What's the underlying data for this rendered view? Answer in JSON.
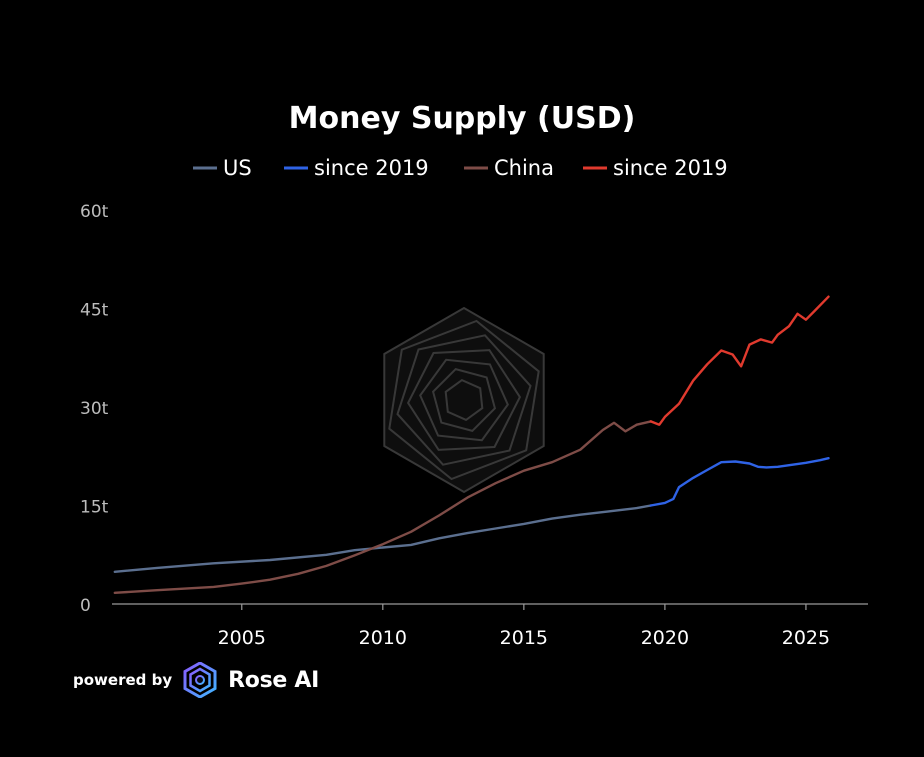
{
  "chart_data": {
    "type": "line",
    "title": "Money Supply (USD)",
    "xlabel": "",
    "ylabel": "",
    "xlim": [
      2000.4,
      2027.2
    ],
    "ylim": [
      0,
      60
    ],
    "x_ticks": [
      2005,
      2010,
      2015,
      2020,
      2025
    ],
    "x_tick_labels": [
      "2005",
      "2010",
      "2015",
      "2020",
      "2025"
    ],
    "y_ticks": [
      0,
      15,
      30,
      45,
      60
    ],
    "y_tick_labels": [
      "0",
      "15t",
      "30t",
      "45t",
      "60t"
    ],
    "grid": false,
    "legend_position": "top-center",
    "series": [
      {
        "name": "US",
        "color": "#5b6f8f",
        "x": [
          2000.5,
          2002,
          2004,
          2006,
          2008,
          2009,
          2010,
          2011,
          2012,
          2013,
          2014,
          2015,
          2016,
          2017,
          2018,
          2019,
          2019.5
        ],
        "y": [
          4.9,
          5.5,
          6.2,
          6.7,
          7.5,
          8.2,
          8.6,
          9.0,
          10.0,
          10.8,
          11.5,
          12.2,
          13.0,
          13.6,
          14.1,
          14.6,
          15.0
        ]
      },
      {
        "name": "since 2019",
        "color": "#2f63e6",
        "x": [
          2019.5,
          2020,
          2020.3,
          2020.5,
          2021,
          2021.5,
          2022,
          2022.5,
          2023,
          2023.3,
          2023.6,
          2024,
          2024.5,
          2025,
          2025.5,
          2025.8
        ],
        "y": [
          15.0,
          15.4,
          16.0,
          17.8,
          19.2,
          20.4,
          21.6,
          21.7,
          21.4,
          20.9,
          20.8,
          20.9,
          21.2,
          21.5,
          21.9,
          22.2
        ]
      },
      {
        "name": "China",
        "color": "#7e4c47",
        "x": [
          2000.5,
          2002,
          2004,
          2005,
          2006,
          2007,
          2008,
          2009,
          2010,
          2011,
          2012,
          2013,
          2014,
          2015,
          2016,
          2017,
          2017.8,
          2018.2,
          2018.6,
          2019,
          2019.5
        ],
        "y": [
          1.7,
          2.1,
          2.6,
          3.1,
          3.7,
          4.6,
          5.8,
          7.4,
          9.1,
          11.0,
          13.5,
          16.2,
          18.4,
          20.3,
          21.6,
          23.5,
          26.5,
          27.6,
          26.3,
          27.3,
          27.8
        ]
      },
      {
        "name": "since 2019",
        "color": "#e03a2e",
        "x": [
          2019.5,
          2019.8,
          2020,
          2020.5,
          2021,
          2021.5,
          2022,
          2022.4,
          2022.7,
          2023,
          2023.4,
          2023.8,
          2024,
          2024.4,
          2024.7,
          2025,
          2025.3,
          2025.8
        ],
        "y": [
          27.8,
          27.3,
          28.5,
          30.5,
          34.0,
          36.5,
          38.6,
          38.0,
          36.2,
          39.5,
          40.3,
          39.8,
          41.0,
          42.3,
          44.2,
          43.3,
          44.6,
          46.8
        ]
      }
    ]
  },
  "footer": {
    "powered_by": "powered by",
    "brand_name": "Rose AI",
    "brand_logo_icon": "rose-ai-logo-icon"
  }
}
